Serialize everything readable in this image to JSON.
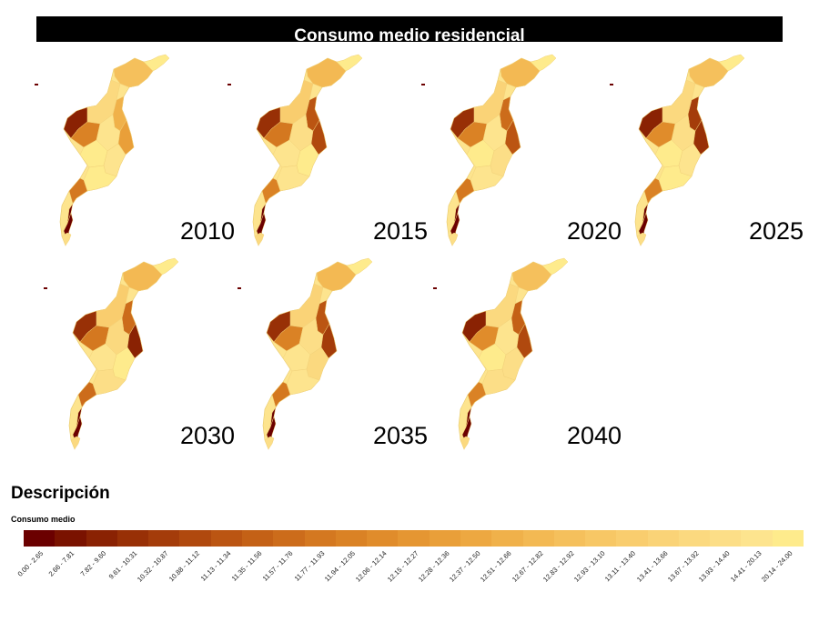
{
  "title": "Consumo medio residencial",
  "years": [
    "2010",
    "2015",
    "2020",
    "2025",
    "2030",
    "2035",
    "2040"
  ],
  "legend": {
    "heading": "Descripción",
    "subtitle": "Consumo medio",
    "classes": [
      {
        "label": "0.00 - 2.65",
        "color": "#6b0000"
      },
      {
        "label": "2.66 - 7.81",
        "color": "#7a1200"
      },
      {
        "label": "7.82 - 9.60",
        "color": "#8a2203"
      },
      {
        "label": "9.61 - 10.31",
        "color": "#983006"
      },
      {
        "label": "10.32 - 10.87",
        "color": "#a43c0a"
      },
      {
        "label": "10.88 - 11.12",
        "color": "#b0490e"
      },
      {
        "label": "11.13 - 11.34",
        "color": "#bb5512"
      },
      {
        "label": "11.35 - 11.56",
        "color": "#c46116"
      },
      {
        "label": "11.57 - 11.76",
        "color": "#cc6c1b"
      },
      {
        "label": "11.77 - 11.93",
        "color": "#d47820"
      },
      {
        "label": "11.94 - 12.05",
        "color": "#da8225"
      },
      {
        "label": "12.06 - 12.14",
        "color": "#e08c2b"
      },
      {
        "label": "12.15 - 12.27",
        "color": "#e59632"
      },
      {
        "label": "12.28 - 12.36",
        "color": "#e99f39"
      },
      {
        "label": "12.37 - 12.50",
        "color": "#eda841"
      },
      {
        "label": "12.51 - 12.66",
        "color": "#f0b14a"
      },
      {
        "label": "12.67 - 12.82",
        "color": "#f3b953"
      },
      {
        "label": "12.83 - 12.92",
        "color": "#f5c05c"
      },
      {
        "label": "12.93 - 13.10",
        "color": "#f7c765"
      },
      {
        "label": "13.11 - 13.40",
        "color": "#f9cd6e"
      },
      {
        "label": "13.41 - 13.66",
        "color": "#fad377"
      },
      {
        "label": "13.67 - 13.92",
        "color": "#fbd97f"
      },
      {
        "label": "13.93 - 14.40",
        "color": "#fcde87"
      },
      {
        "label": "14.41 - 20.13",
        "color": "#fde48e"
      },
      {
        "label": "20.14 - 24.00",
        "color": "#feeb8c"
      }
    ]
  }
}
